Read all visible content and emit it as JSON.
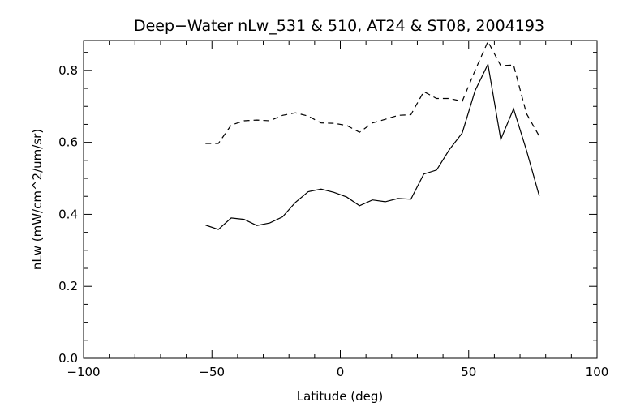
{
  "chart_data": {
    "type": "line",
    "title": "Deep−Water nLw_531 & 510, AT24 & ST08, 2004193",
    "xlabel": "Latitude (deg)",
    "ylabel": "nLw (mW/cm^2/um/sr)",
    "xlim": [
      -100,
      100
    ],
    "ylim": [
      0,
      0.883
    ],
    "xticks": [
      -100,
      -50,
      0,
      50,
      100
    ],
    "xtick_labels": [
      "−100",
      "−50",
      "0",
      "50",
      "100"
    ],
    "yticks": [
      0,
      0.2,
      0.4,
      0.6,
      0.8
    ],
    "ytick_labels": [
      "0.0",
      "0.2",
      "0.4",
      "0.6",
      "0.8"
    ],
    "grid": false,
    "x": [
      -52.5,
      -47.5,
      -42.5,
      -37.5,
      -32.5,
      -27.5,
      -22.5,
      -17.5,
      -12.5,
      -7.5,
      -2.5,
      2.5,
      7.5,
      12.5,
      17.5,
      22.5,
      27.5,
      32.5,
      37.5,
      42.5,
      47.5,
      52.5,
      57.5,
      62.5,
      67.5,
      72.5,
      77.5
    ],
    "series": [
      {
        "name": "solid",
        "style": "solid",
        "color": "#000000",
        "values": [
          0.37,
          0.358,
          0.39,
          0.386,
          0.369,
          0.376,
          0.393,
          0.433,
          0.463,
          0.47,
          0.461,
          0.448,
          0.424,
          0.44,
          0.435,
          0.444,
          0.442,
          0.512,
          0.523,
          0.58,
          0.626,
          0.744,
          0.817,
          0.608,
          0.693,
          0.578,
          0.451
        ]
      },
      {
        "name": "dashed",
        "style": "dashed",
        "color": "#000000",
        "values": [
          0.597,
          0.597,
          0.648,
          0.66,
          0.662,
          0.66,
          0.675,
          0.682,
          0.673,
          0.654,
          0.653,
          0.647,
          0.628,
          0.654,
          0.664,
          0.675,
          0.677,
          0.741,
          0.722,
          0.722,
          0.714,
          0.8,
          0.88,
          0.813,
          0.815,
          0.68,
          0.617
        ]
      }
    ]
  }
}
